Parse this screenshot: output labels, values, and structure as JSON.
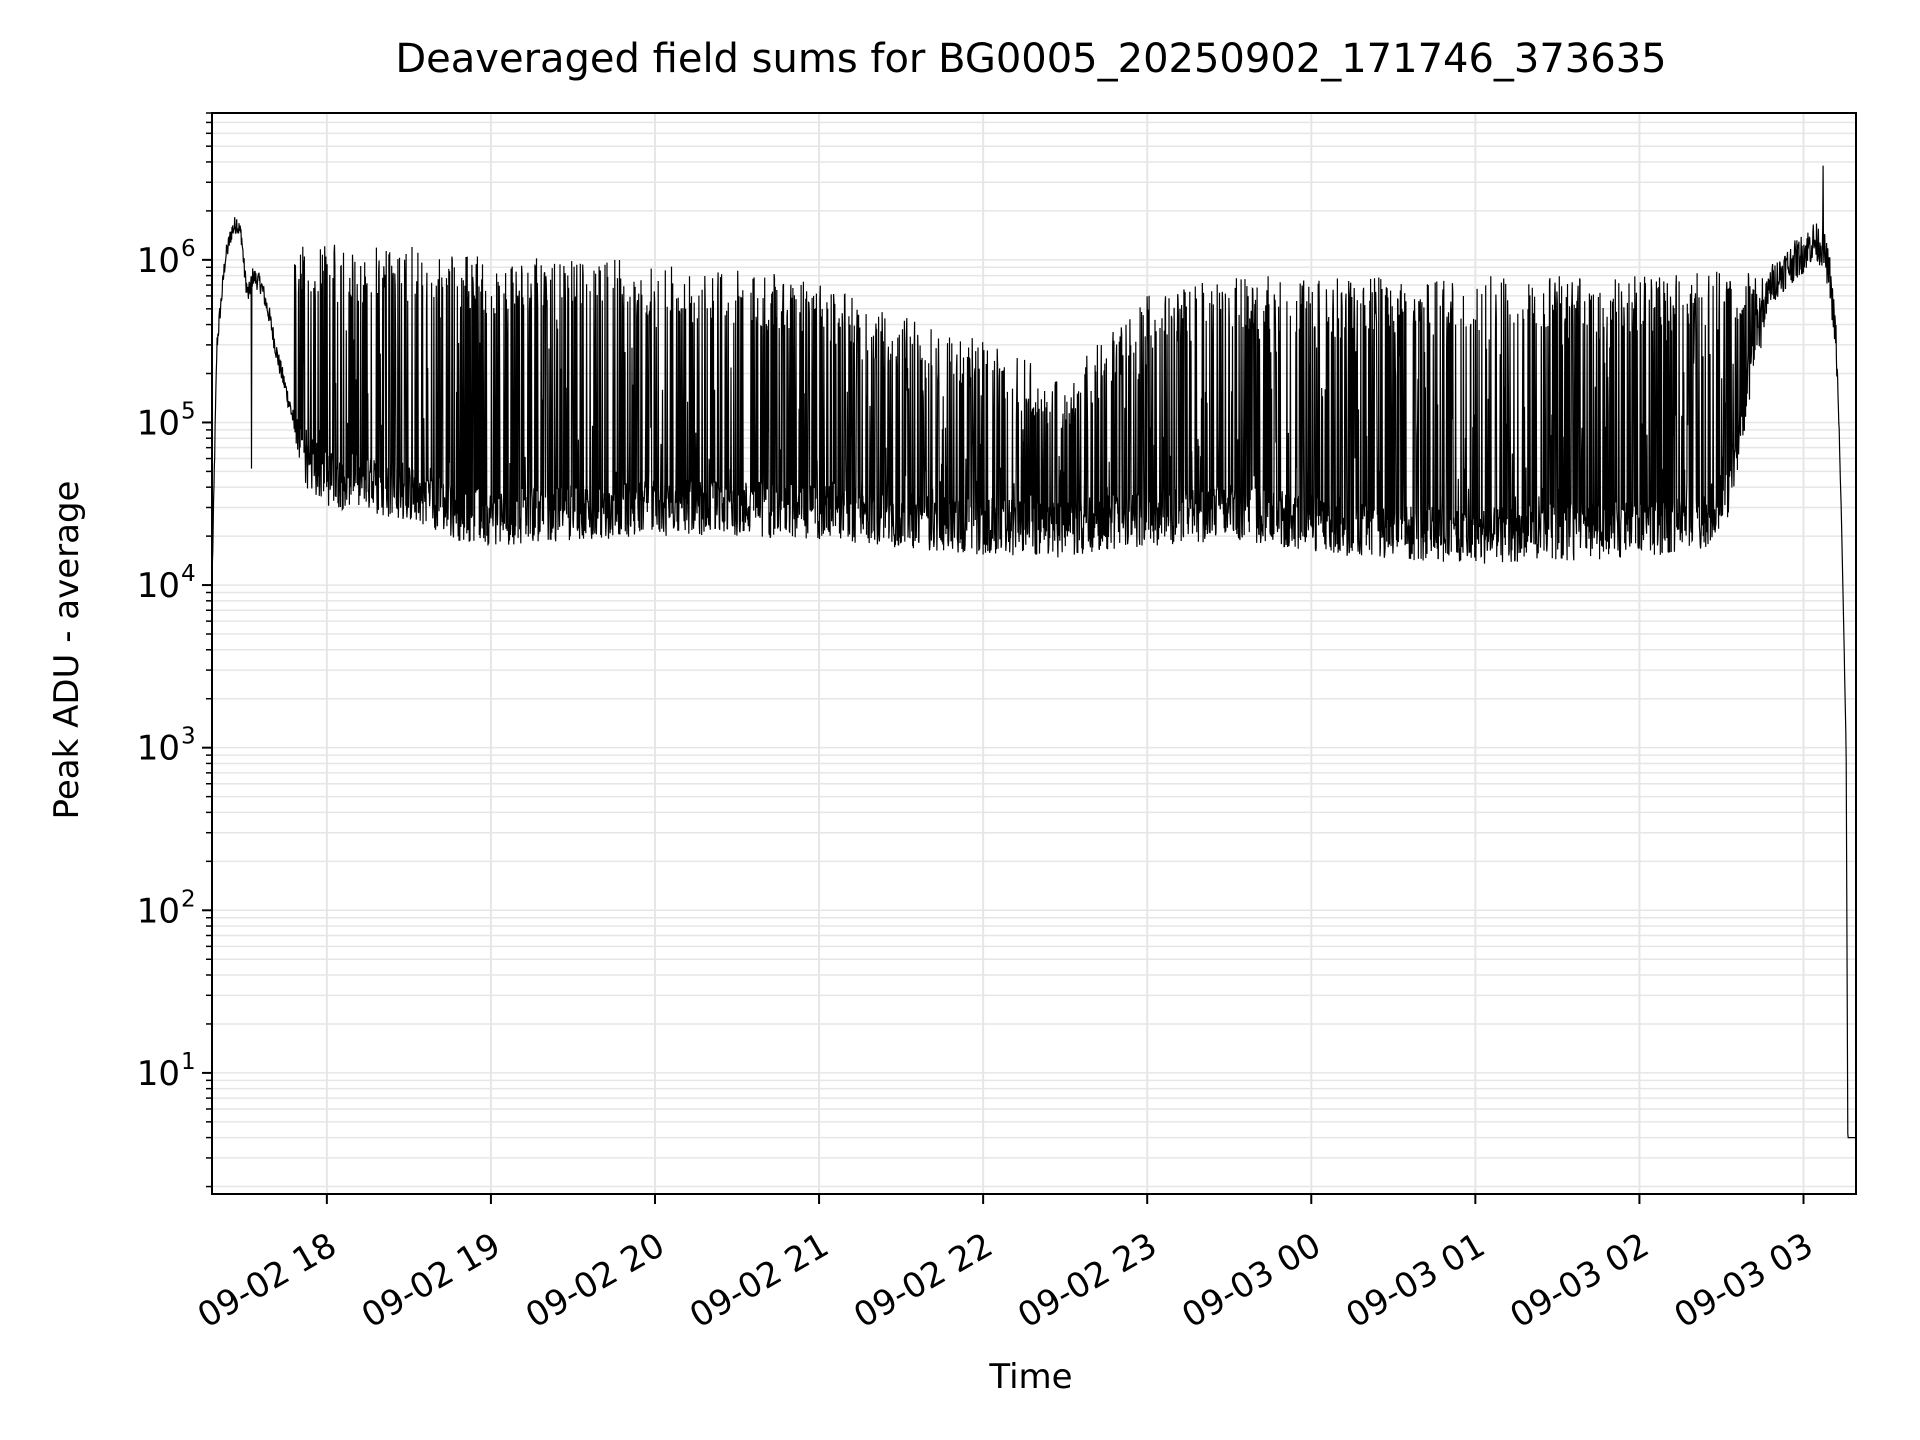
{
  "chart_data": {
    "type": "line",
    "title": "Deaveraged field sums for BG0005_20250902_171746_373635",
    "xlabel": "Time",
    "ylabel": "Peak ADU - average",
    "yscale": "log",
    "ylim": [
      1.8,
      8000000
    ],
    "xlim_hours": [
      17.3,
      27.32
    ],
    "x_ticks": [
      {
        "label": "09-02 18",
        "hours": 18
      },
      {
        "label": "09-02 19",
        "hours": 19
      },
      {
        "label": "09-02 20",
        "hours": 20
      },
      {
        "label": "09-02 21",
        "hours": 21
      },
      {
        "label": "09-02 22",
        "hours": 22
      },
      {
        "label": "09-02 23",
        "hours": 23
      },
      {
        "label": "09-03 00",
        "hours": 24
      },
      {
        "label": "09-03 01",
        "hours": 25
      },
      {
        "label": "09-03 02",
        "hours": 26
      },
      {
        "label": "09-03 03",
        "hours": 27
      }
    ],
    "y_ticks": [
      {
        "base": "10",
        "exp": "1",
        "value": 10
      },
      {
        "base": "10",
        "exp": "2",
        "value": 100
      },
      {
        "base": "10",
        "exp": "3",
        "value": 1000
      },
      {
        "base": "10",
        "exp": "4",
        "value": 10000
      },
      {
        "base": "10",
        "exp": "5",
        "value": 100000
      },
      {
        "base": "10",
        "exp": "6",
        "value": 1000000
      }
    ],
    "grid": true,
    "line_color": "#000000",
    "series": [
      {
        "name": "Peak ADU - average",
        "baseline_points": [
          [
            17.3,
            10000
          ],
          [
            17.33,
            300000
          ],
          [
            17.38,
            1000000
          ],
          [
            17.42,
            1500000
          ],
          [
            17.45,
            1700000
          ],
          [
            17.48,
            1400000
          ],
          [
            17.5,
            800000
          ],
          [
            17.52,
            600000
          ],
          [
            17.55,
            800000
          ],
          [
            17.6,
            700000
          ],
          [
            17.65,
            450000
          ],
          [
            17.7,
            250000
          ],
          [
            17.75,
            160000
          ],
          [
            17.8,
            100000
          ],
          [
            17.85,
            60000
          ],
          [
            17.9,
            55000
          ],
          [
            18.0,
            45000
          ],
          [
            18.2,
            42000
          ],
          [
            18.4,
            38000
          ],
          [
            18.6,
            35000
          ],
          [
            18.8,
            28000
          ],
          [
            19.0,
            26000
          ],
          [
            19.5,
            28000
          ],
          [
            20.0,
            30000
          ],
          [
            20.5,
            30000
          ],
          [
            21.0,
            28000
          ],
          [
            21.5,
            25000
          ],
          [
            22.0,
            23000
          ],
          [
            22.5,
            22000
          ],
          [
            23.0,
            26000
          ],
          [
            23.5,
            28000
          ],
          [
            24.0,
            24000
          ],
          [
            24.5,
            21000
          ],
          [
            25.0,
            20000
          ],
          [
            25.5,
            21000
          ],
          [
            26.0,
            22000
          ],
          [
            26.4,
            25000
          ],
          [
            26.55,
            40000
          ],
          [
            26.7,
            300000
          ],
          [
            26.8,
            700000
          ],
          [
            26.9,
            900000
          ],
          [
            27.0,
            1100000
          ],
          [
            27.06,
            1300000
          ],
          [
            27.12,
            1200000
          ],
          [
            27.16,
            800000
          ],
          [
            27.2,
            300000
          ],
          [
            27.23,
            30000
          ],
          [
            27.26,
            1000
          ],
          [
            27.27,
            4
          ],
          [
            27.32,
            4
          ]
        ],
        "upper_envelope": [
          [
            17.8,
            1300000
          ],
          [
            18.5,
            1150000
          ],
          [
            19.0,
            1050000
          ],
          [
            19.5,
            1000000
          ],
          [
            20.0,
            1000000
          ],
          [
            20.5,
            900000
          ],
          [
            21.0,
            750000
          ],
          [
            21.5,
            450000
          ],
          [
            22.0,
            320000
          ],
          [
            22.5,
            200000
          ],
          [
            23.0,
            600000
          ],
          [
            23.5,
            800000
          ],
          [
            24.0,
            800000
          ],
          [
            24.5,
            800000
          ],
          [
            25.0,
            800000
          ],
          [
            25.5,
            800000
          ],
          [
            26.0,
            800000
          ],
          [
            26.5,
            850000
          ],
          [
            27.0,
            1000000
          ]
        ],
        "spikes": [
          {
            "hours": 17.54,
            "value": 52000
          },
          {
            "hours": 18.52,
            "value": 1200000
          },
          {
            "hours": 27.12,
            "value": 3800000
          }
        ],
        "minimum": {
          "hours": 27.27,
          "value": 4
        }
      }
    ]
  }
}
